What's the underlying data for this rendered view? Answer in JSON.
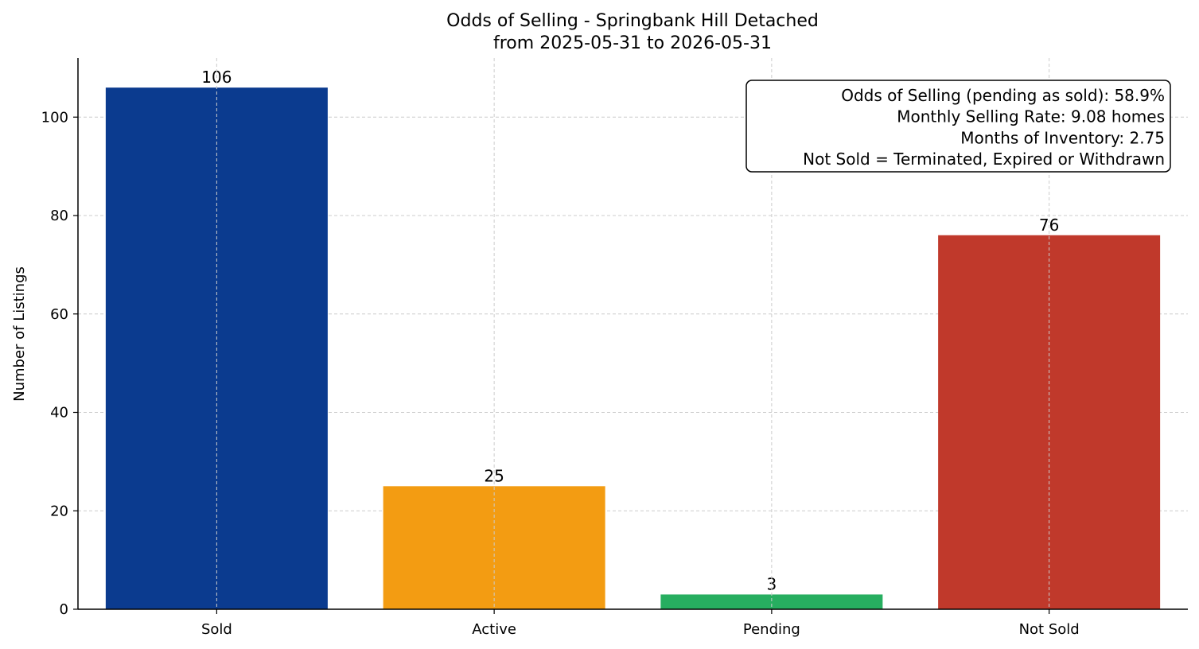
{
  "chart_data": {
    "type": "bar",
    "title": "Odds of Selling - Springbank Hill Detached",
    "subtitle": "from 2025-05-31 to 2026-05-31",
    "xlabel": "",
    "ylabel": "Number of Listings",
    "categories": [
      "Sold",
      "Active",
      "Pending",
      "Not Sold"
    ],
    "values": [
      106,
      25,
      3,
      76
    ],
    "colors": [
      "#0b3b8f",
      "#f39c12",
      "#27ae60",
      "#c0392b"
    ],
    "ylim": [
      0,
      112
    ],
    "yticks": [
      0,
      20,
      40,
      60,
      80,
      100
    ],
    "grid": true,
    "info_box": {
      "position": "top-right",
      "lines": [
        "Odds of Selling (pending as sold): 58.9%",
        "Monthly Selling Rate: 9.08 homes",
        "Months of Inventory: 2.75",
        "Not Sold = Terminated, Expired or Withdrawn"
      ]
    }
  }
}
